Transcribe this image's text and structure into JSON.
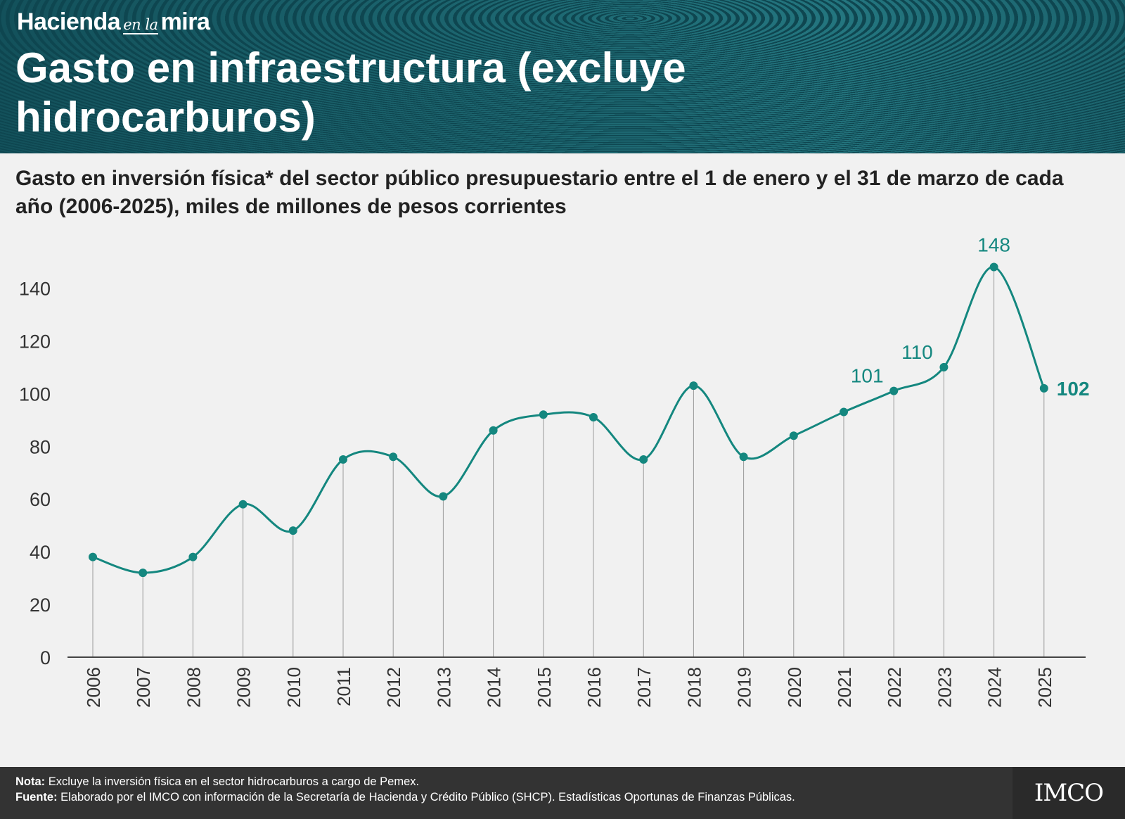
{
  "header": {
    "brand": {
      "part1": "Hacienda",
      "part2": "en la",
      "part3": "mira"
    },
    "title": "Gasto en infraestructura (excluye hidrocarburos)"
  },
  "chart_data": {
    "type": "line",
    "title": "Gasto en inversión física* del sector público presupuestario entre el 1 de enero y el 31 de marzo de cada año (2006-2025), miles de millones de pesos corrientes",
    "categories": [
      "2006",
      "2007",
      "2008",
      "2009",
      "2010",
      "2011",
      "2012",
      "2013",
      "2014",
      "2015",
      "2016",
      "2017",
      "2018",
      "2019",
      "2020",
      "2021",
      "2022",
      "2023",
      "2024",
      "2025"
    ],
    "series": [
      {
        "values": [
          38,
          32,
          38,
          58,
          48,
          75,
          76,
          61,
          86,
          92,
          91,
          75,
          103,
          76,
          84,
          93,
          101,
          110,
          148,
          102
        ]
      }
    ],
    "labels": [
      {
        "category": "2022",
        "text": "101"
      },
      {
        "category": "2023",
        "text": "110"
      },
      {
        "category": "2024",
        "text": "148"
      },
      {
        "category": "2025",
        "text": "102",
        "bold": true
      }
    ],
    "yticks": [
      "0",
      "20",
      "40",
      "60",
      "80",
      "100",
      "120",
      "140"
    ],
    "ylim": [
      0,
      150
    ],
    "xlabel": "",
    "ylabel": "",
    "grid": false,
    "color": "#14877f"
  },
  "footer": {
    "note_label": "Nota:",
    "note_text": " Excluye la inversión física en el sector hidrocarburos a cargo de Pemex.",
    "source_label": "Fuente:",
    "source_text": " Elaborado por el IMCO con información de la Secretaría de Hacienda y Crédito Público (SHCP). Estadísticas Oportunas de Finanzas Públicas.",
    "logo": "IMCO"
  }
}
